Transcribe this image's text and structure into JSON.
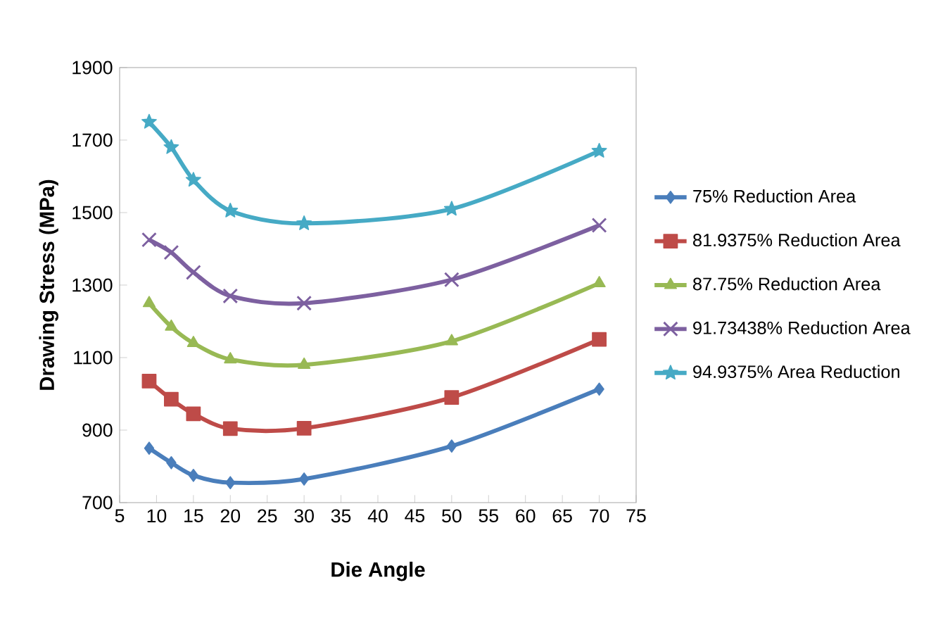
{
  "chart_data": {
    "type": "line",
    "xlabel": "Die Angle",
    "ylabel": "Drawing Stress (MPa)",
    "x": [
      9,
      12,
      15,
      20,
      30,
      50,
      70
    ],
    "series": [
      {
        "name": "75% Reduction Area",
        "color": "#4a7ebb",
        "marker": "diamond",
        "values": [
          850,
          810,
          775,
          755,
          765,
          856,
          1013
        ]
      },
      {
        "name": "81.9375% Reduction Area",
        "color": "#be4b48",
        "marker": "square",
        "values": [
          1035,
          985,
          945,
          904,
          905,
          990,
          1150
        ]
      },
      {
        "name": "87.75% Reduction Area",
        "color": "#98b954",
        "marker": "triangle",
        "values": [
          1250,
          1185,
          1140,
          1095,
          1080,
          1145,
          1305
        ]
      },
      {
        "name": "91.73438% Reduction Area",
        "color": "#7d60a0",
        "marker": "cross",
        "values": [
          1425,
          1390,
          1335,
          1270,
          1250,
          1315,
          1465
        ]
      },
      {
        "name": "94.9375% Area Reduction",
        "color": "#46aac5",
        "marker": "star",
        "values": [
          1750,
          1680,
          1590,
          1505,
          1470,
          1510,
          1670
        ]
      }
    ],
    "xlim": [
      5,
      75
    ],
    "xticks": [
      5,
      10,
      15,
      20,
      25,
      30,
      35,
      40,
      45,
      50,
      55,
      60,
      65,
      70,
      75
    ],
    "ylim": [
      700,
      1900
    ],
    "yticks": [
      700,
      900,
      1100,
      1300,
      1500,
      1700,
      1900
    ],
    "grid": false,
    "legend": "right",
    "line_style": "solid"
  }
}
